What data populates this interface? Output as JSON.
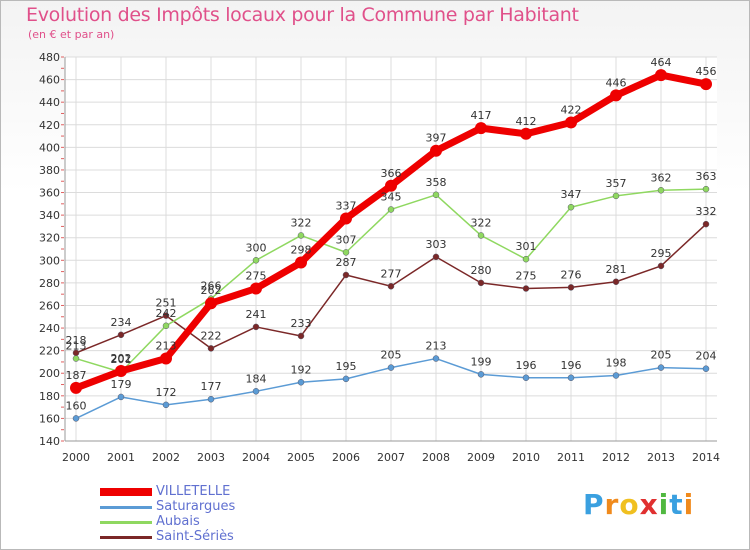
{
  "chart_data": {
    "type": "line",
    "title": "Evolution des Impôts locaux pour la Commune par Habitant",
    "subtitle": "(en € et par an)",
    "x": [
      "2000",
      "2001",
      "2002",
      "2003",
      "2004",
      "2005",
      "2006",
      "2007",
      "2008",
      "2009",
      "2010",
      "2011",
      "2012",
      "2013",
      "2014"
    ],
    "ylim": [
      140,
      480
    ],
    "yticks": [
      140,
      160,
      180,
      200,
      220,
      240,
      260,
      280,
      300,
      320,
      340,
      360,
      380,
      400,
      420,
      440,
      460,
      480
    ],
    "grid": true,
    "legend_position": "bottom-left",
    "series": [
      {
        "name": "VILLETELLE",
        "color": "#ee0000",
        "values": [
          187,
          202,
          213,
          262,
          275,
          298,
          337,
          366,
          397,
          417,
          412,
          422,
          446,
          464,
          456
        ]
      },
      {
        "name": "Saturargues",
        "color": "#5b9bd5",
        "values": [
          160,
          179,
          172,
          177,
          184,
          192,
          195,
          205,
          213,
          199,
          196,
          196,
          198,
          205,
          204
        ]
      },
      {
        "name": "Aubais",
        "color": "#8fd860",
        "values": [
          213,
          201,
          242,
          266,
          300,
          322,
          307,
          345,
          358,
          322,
          301,
          347,
          357,
          362,
          363
        ]
      },
      {
        "name": "Saint-Sériès",
        "color": "#7b2828",
        "values": [
          218,
          234,
          251,
          222,
          241,
          233,
          287,
          277,
          303,
          280,
          275,
          276,
          281,
          295,
          332
        ]
      }
    ]
  },
  "logo": {
    "letters": [
      "P",
      "r",
      "o",
      "x",
      "i",
      "t",
      "i"
    ],
    "colors": [
      "#3aa0e0",
      "#f08a1c",
      "#f0c020",
      "#e03030",
      "#50b840",
      "#3aa0e0",
      "#f08a1c"
    ]
  }
}
